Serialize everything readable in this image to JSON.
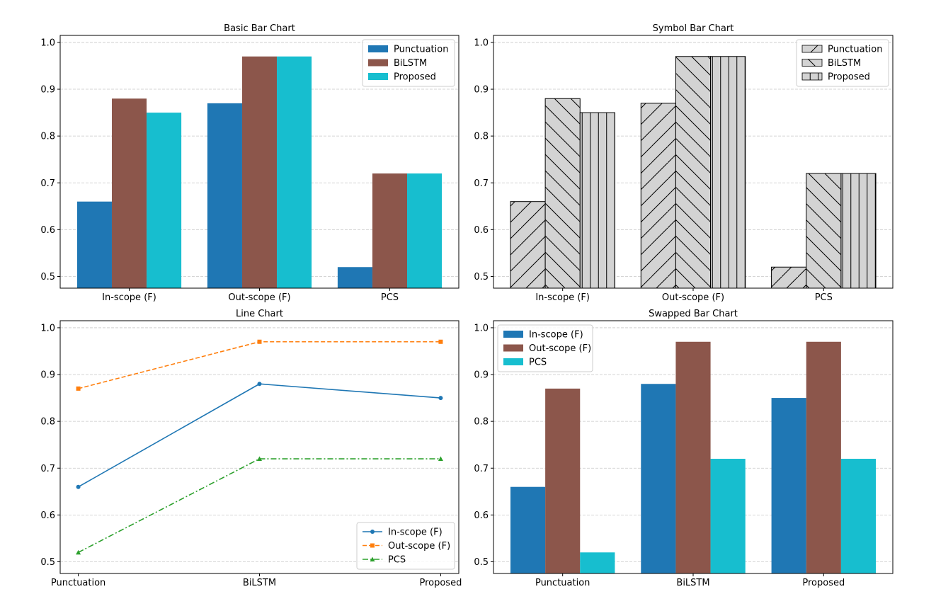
{
  "chart_data": [
    {
      "type": "bar",
      "title": "Basic Bar Chart",
      "categories": [
        "In-scope (F)",
        "Out-scope (F)",
        "PCS"
      ],
      "series": [
        {
          "name": "Punctuation",
          "values": [
            0.66,
            0.87,
            0.52
          ],
          "color": "#1f77b4"
        },
        {
          "name": "BiLSTM",
          "values": [
            0.88,
            0.97,
            0.72
          ],
          "color": "#8c564b"
        },
        {
          "name": "Proposed",
          "values": [
            0.85,
            0.97,
            0.72
          ],
          "color": "#17becf"
        }
      ],
      "ylim": [
        0.475,
        1.015
      ],
      "yticks": [
        "0.5",
        "0.6",
        "0.7",
        "0.8",
        "0.9",
        "1.0"
      ],
      "grid": true,
      "legend": "top-right"
    },
    {
      "type": "bar",
      "title": "Symbol Bar Chart",
      "categories": [
        "In-scope (F)",
        "Out-scope (F)",
        "PCS"
      ],
      "series": [
        {
          "name": "Punctuation",
          "values": [
            0.66,
            0.87,
            0.52
          ],
          "hatch": "/",
          "color": "#d3d3d3"
        },
        {
          "name": "BiLSTM",
          "values": [
            0.88,
            0.97,
            0.72
          ],
          "hatch": "\\",
          "color": "#d3d3d3"
        },
        {
          "name": "Proposed",
          "values": [
            0.85,
            0.97,
            0.72
          ],
          "hatch": "|",
          "color": "#d3d3d3"
        }
      ],
      "ylim": [
        0.475,
        1.015
      ],
      "yticks": [
        "0.5",
        "0.6",
        "0.7",
        "0.8",
        "0.9",
        "1.0"
      ],
      "grid": true,
      "legend": "top-right"
    },
    {
      "type": "line",
      "title": "Line Chart",
      "categories": [
        "Punctuation",
        "BiLSTM",
        "Proposed"
      ],
      "series": [
        {
          "name": "In-scope (F)",
          "values": [
            0.66,
            0.88,
            0.85
          ],
          "color": "#1f77b4",
          "linestyle": "solid",
          "marker": "circle"
        },
        {
          "name": "Out-scope (F)",
          "values": [
            0.87,
            0.97,
            0.97
          ],
          "color": "#ff7f0e",
          "linestyle": "dashed",
          "marker": "square"
        },
        {
          "name": "PCS",
          "values": [
            0.52,
            0.72,
            0.72
          ],
          "color": "#2ca02c",
          "linestyle": "dashdot",
          "marker": "triangle"
        }
      ],
      "ylim": [
        0.475,
        1.015
      ],
      "yticks": [
        "0.5",
        "0.6",
        "0.7",
        "0.8",
        "0.9",
        "1.0"
      ],
      "grid": true,
      "legend": "bottom-right"
    },
    {
      "type": "bar",
      "title": "Swapped Bar Chart",
      "categories": [
        "Punctuation",
        "BiLSTM",
        "Proposed"
      ],
      "series": [
        {
          "name": "In-scope (F)",
          "values": [
            0.66,
            0.88,
            0.85
          ],
          "color": "#1f77b4"
        },
        {
          "name": "Out-scope (F)",
          "values": [
            0.87,
            0.97,
            0.97
          ],
          "color": "#8c564b"
        },
        {
          "name": "PCS",
          "values": [
            0.52,
            0.72,
            0.72
          ],
          "color": "#17becf"
        }
      ],
      "ylim": [
        0.475,
        1.015
      ],
      "yticks": [
        "0.5",
        "0.6",
        "0.7",
        "0.8",
        "0.9",
        "1.0"
      ],
      "grid": true,
      "legend": "top-left"
    }
  ]
}
